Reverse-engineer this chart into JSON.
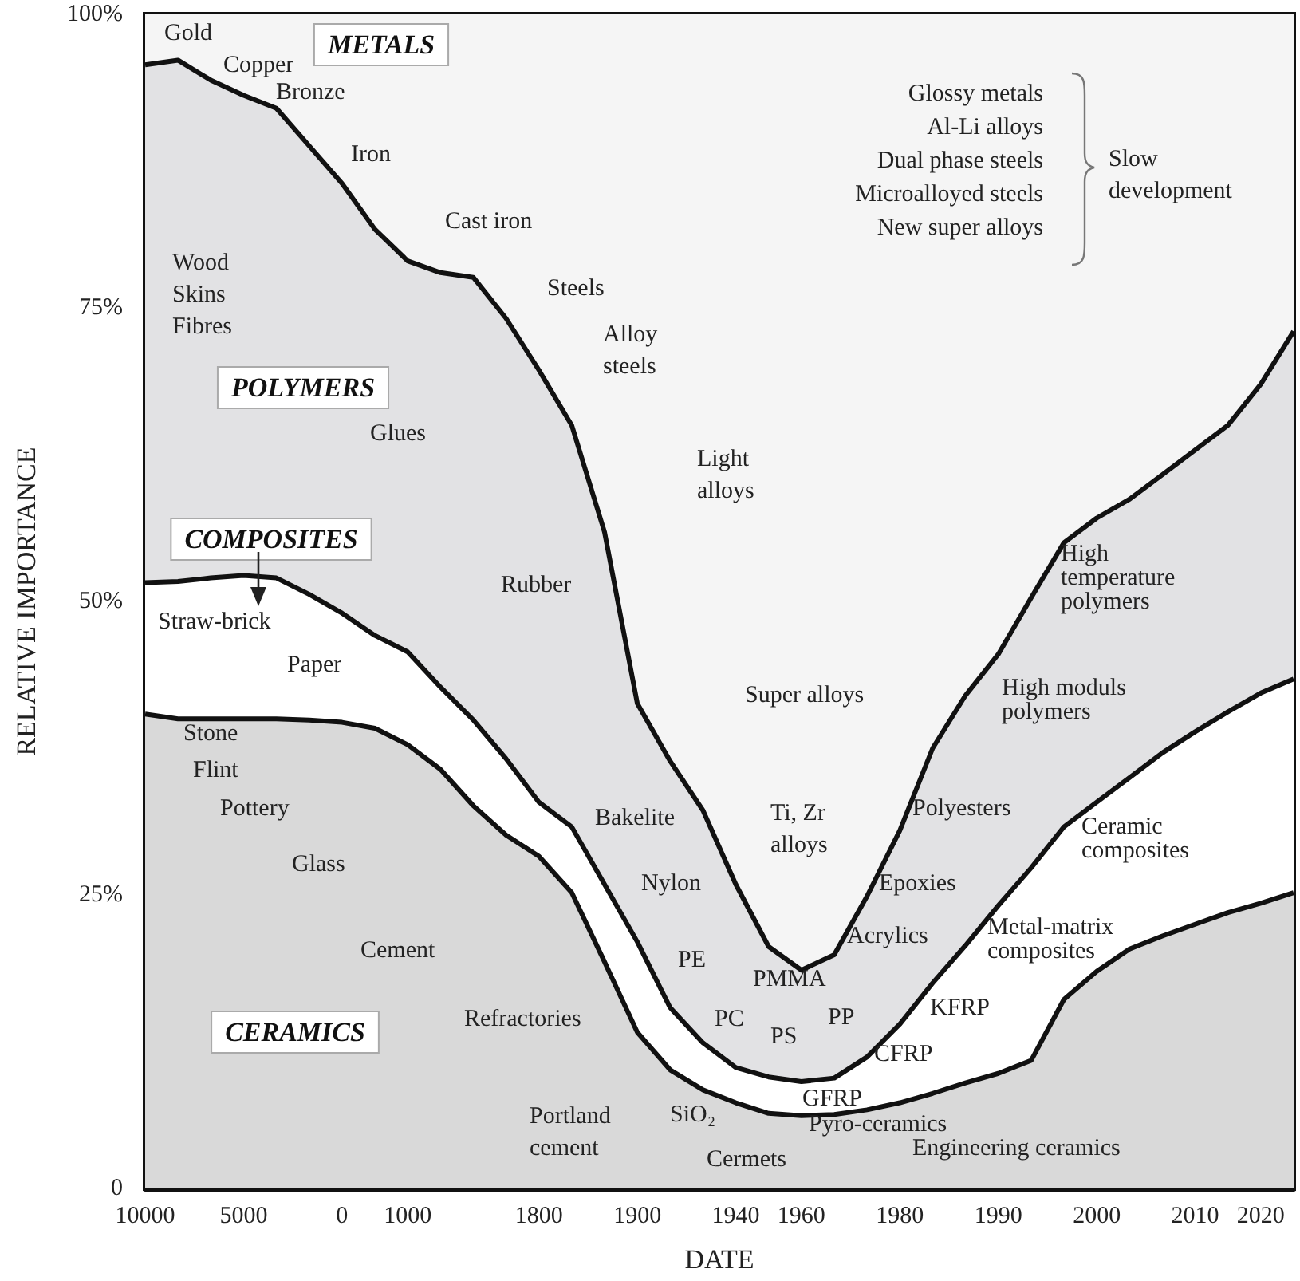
{
  "chart_data": {
    "type": "area",
    "stacked": true,
    "xlabel": "DATE",
    "ylabel": "RELATIVE IMPORTANCE",
    "categories": [
      "10000",
      null,
      null,
      "5000",
      null,
      null,
      "0",
      null,
      "1000",
      null,
      null,
      null,
      "1800",
      null,
      null,
      "1900",
      null,
      null,
      "1940",
      null,
      "1960",
      null,
      null,
      "1980",
      null,
      null,
      "1990",
      null,
      null,
      "2000",
      null,
      null,
      "2010",
      null,
      "2020",
      null
    ],
    "ylim": [
      0,
      100
    ],
    "yticks": [
      {
        "value": 0,
        "label": "0"
      },
      {
        "value": 25,
        "label": "25%"
      },
      {
        "value": 50,
        "label": "50%"
      },
      {
        "value": 75,
        "label": "75%"
      },
      {
        "value": 100,
        "label": "100%"
      }
    ],
    "grid": false,
    "legend": false,
    "series": [
      {
        "name": "CERAMICS",
        "color": "#d9d9d9",
        "values": [
          40.4,
          40.0,
          40.0,
          40.0,
          40.0,
          39.9,
          39.7,
          39.2,
          37.8,
          35.7,
          32.6,
          30.1,
          28.3,
          25.2,
          19.3,
          13.3,
          10.1,
          8.4,
          7.3,
          6.4,
          6.2,
          6.3,
          6.7,
          7.3,
          8.1,
          9.0,
          9.8,
          10.9,
          16.1,
          18.5,
          20.4,
          21.5,
          22.5,
          23.5,
          24.3,
          25.2
        ]
      },
      {
        "name": "COMPOSITES",
        "color": "#ffffff",
        "values": [
          11.2,
          11.7,
          12.0,
          12.2,
          12.0,
          10.7,
          9.3,
          7.9,
          7.9,
          7.0,
          7.3,
          6.5,
          4.6,
          5.6,
          6.6,
          7.7,
          5.3,
          4.0,
          3.0,
          3.1,
          2.9,
          3.1,
          4.5,
          6.7,
          9.4,
          11.7,
          14.3,
          16.4,
          14.7,
          14.4,
          14.6,
          15.6,
          16.4,
          17.1,
          17.9,
          18.2
        ]
      },
      {
        "name": "POLYMERS",
        "color": "#e2e2e4",
        "values": [
          44.1,
          44.4,
          42.4,
          40.9,
          40.0,
          38.2,
          36.6,
          34.6,
          33.3,
          35.3,
          37.7,
          37.5,
          36.8,
          34.2,
          30.0,
          20.3,
          21.0,
          19.8,
          15.6,
          11.1,
          9.5,
          10.5,
          13.7,
          16.5,
          20.0,
          21.3,
          21.4,
          23.0,
          24.2,
          24.2,
          23.7,
          23.7,
          24.0,
          24.4,
          26.3,
          29.6
        ]
      },
      {
        "name": "METALS",
        "color": "#f5f5f5",
        "values": [
          4.3,
          3.9,
          5.6,
          6.9,
          8.0,
          11.2,
          14.4,
          18.3,
          21.0,
          22.0,
          22.4,
          25.9,
          30.3,
          35.0,
          44.1,
          58.7,
          63.6,
          67.8,
          74.1,
          79.4,
          81.4,
          80.1,
          75.1,
          69.5,
          62.5,
          58.0,
          54.5,
          49.7,
          45.0,
          42.9,
          41.3,
          39.2,
          37.1,
          35.0,
          31.5,
          27.0
        ]
      }
    ],
    "annotations": [
      "Gold",
      "Copper",
      "Bronze",
      "Iron",
      "Cast iron",
      "Steels",
      "Alloy steels",
      "Light alloys",
      "Wood Skins Fibres",
      "Glues",
      "Rubber",
      "Straw-brick",
      "Paper",
      "Stone",
      "Flint",
      "Pottery",
      "Glass",
      "Cement",
      "Refractories",
      "Portland cement",
      "SiO₂",
      "Cermets",
      "Bakelite",
      "Nylon",
      "PE",
      "PMMA",
      "PC",
      "PS",
      "PP",
      "Ti, Zr alloys",
      "Super alloys",
      "Polyesters",
      "Epoxies",
      "Acrylics",
      "GFRP",
      "CFRP",
      "KFRP",
      "Metal-matrix composites",
      "Pyro-ceramics",
      "Engineering ceramics",
      "High moduls polymers",
      "High temperature polymers",
      "Ceramic composites",
      "Glossy metals",
      "Al-Li alloys",
      "Dual phase steels",
      "Microalloyed steels",
      "New super alloys",
      "Slow development"
    ]
  }
}
